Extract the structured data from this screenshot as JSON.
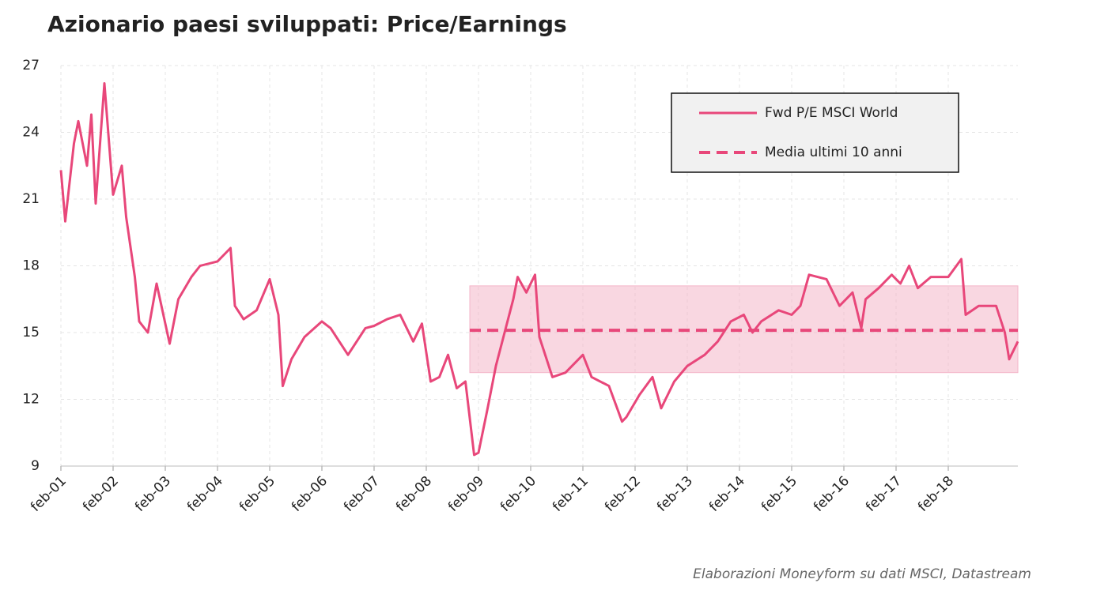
{
  "chart_data": {
    "type": "line",
    "title": "Azionario paesi sviluppati: Price/Earnings",
    "source": "Elaborazioni Moneyform su dati MSCI, Datastream",
    "x": [
      "2001-02",
      "2001-03",
      "2001-05",
      "2001-06",
      "2001-08",
      "2001-09",
      "2001-10",
      "2001-12",
      "2002-02",
      "2002-04",
      "2002-05",
      "2002-07",
      "2002-08",
      "2002-10",
      "2002-12",
      "2003-03",
      "2003-05",
      "2003-08",
      "2003-10",
      "2004-02",
      "2004-05",
      "2004-06",
      "2004-08",
      "2004-11",
      "2005-02",
      "2005-04",
      "2005-05",
      "2005-07",
      "2005-10",
      "2006-02",
      "2006-04",
      "2006-08",
      "2006-12",
      "2007-02",
      "2007-05",
      "2007-08",
      "2007-11",
      "2008-01",
      "2008-03",
      "2008-05",
      "2008-07",
      "2008-09",
      "2008-11",
      "2009-01",
      "2009-02",
      "2009-04",
      "2009-06",
      "2009-08",
      "2009-10",
      "2009-11",
      "2010-01",
      "2010-03",
      "2010-04",
      "2010-05",
      "2010-07",
      "2010-10",
      "2011-02",
      "2011-04",
      "2011-08",
      "2011-11",
      "2011-12",
      "2012-03",
      "2012-06",
      "2012-08",
      "2012-11",
      "2013-02",
      "2013-06",
      "2013-09",
      "2013-12",
      "2014-03",
      "2014-05",
      "2014-07",
      "2014-11",
      "2015-02",
      "2015-04",
      "2015-06",
      "2015-10",
      "2016-01",
      "2016-04",
      "2016-06",
      "2016-07",
      "2016-10",
      "2017-01",
      "2017-03",
      "2017-05",
      "2017-07",
      "2017-10",
      "2018-02",
      "2018-05",
      "2018-06",
      "2018-09",
      "2019-01",
      "2019-03",
      "2019-04",
      "2019-06"
    ],
    "series": [
      {
        "name": "Fwd P/E MSCI World",
        "color": "#e8477a",
        "values": [
          22.3,
          20.0,
          23.5,
          24.5,
          22.5,
          24.8,
          20.8,
          26.2,
          21.2,
          22.5,
          20.2,
          17.5,
          15.5,
          15.0,
          17.2,
          14.5,
          16.5,
          17.5,
          18.0,
          18.2,
          18.8,
          16.2,
          15.6,
          16.0,
          17.4,
          15.8,
          12.6,
          13.8,
          14.8,
          15.5,
          15.2,
          14.0,
          15.2,
          15.3,
          15.6,
          15.8,
          14.6,
          15.4,
          12.8,
          13.0,
          14.0,
          12.5,
          12.8,
          9.5,
          9.6,
          11.5,
          13.5,
          15.0,
          16.5,
          17.5,
          16.8,
          17.6,
          14.8,
          14.2,
          13.0,
          13.2,
          14.0,
          13.0,
          12.6,
          11.0,
          11.2,
          12.2,
          13.0,
          11.6,
          12.8,
          13.5,
          14.0,
          14.6,
          15.5,
          15.8,
          15.0,
          15.5,
          16.0,
          15.8,
          16.2,
          17.6,
          17.4,
          16.2,
          16.8,
          15.2,
          16.5,
          17.0,
          17.6,
          17.2,
          18.0,
          17.0,
          17.5,
          17.5,
          18.3,
          15.8,
          16.2,
          16.2,
          15.0,
          13.8,
          14.6
        ]
      }
    ],
    "mean": {
      "name": "Media ultimi 10 anni",
      "value": 15.1,
      "color": "#e8477a",
      "x": [
        "2008-12",
        "2019-06"
      ]
    },
    "band": {
      "low": 13.2,
      "high": 17.1,
      "x": [
        "2008-12",
        "2019-06"
      ],
      "color": "#f4b6c9"
    },
    "xlim": [
      "2001-02",
      "2019-06"
    ],
    "xticks": [
      {
        "value": "2001-02",
        "label": "feb-01"
      },
      {
        "value": "2002-02",
        "label": "feb-02"
      },
      {
        "value": "2003-02",
        "label": "feb-03"
      },
      {
        "value": "2004-02",
        "label": "feb-04"
      },
      {
        "value": "2005-02",
        "label": "feb-05"
      },
      {
        "value": "2006-02",
        "label": "feb-06"
      },
      {
        "value": "2007-02",
        "label": "feb-07"
      },
      {
        "value": "2008-02",
        "label": "feb-08"
      },
      {
        "value": "2009-02",
        "label": "feb-09"
      },
      {
        "value": "2010-02",
        "label": "feb-10"
      },
      {
        "value": "2011-02",
        "label": "feb-11"
      },
      {
        "value": "2012-02",
        "label": "feb-12"
      },
      {
        "value": "2013-02",
        "label": "feb-13"
      },
      {
        "value": "2014-02",
        "label": "feb-14"
      },
      {
        "value": "2015-02",
        "label": "feb-15"
      },
      {
        "value": "2016-02",
        "label": "feb-16"
      },
      {
        "value": "2017-02",
        "label": "feb-17"
      },
      {
        "value": "2018-02",
        "label": "feb-18"
      }
    ],
    "ylim": [
      9,
      27
    ],
    "yticks": [
      9,
      12,
      15,
      18,
      21,
      24,
      27
    ],
    "grid": true,
    "legend": "upper right"
  }
}
